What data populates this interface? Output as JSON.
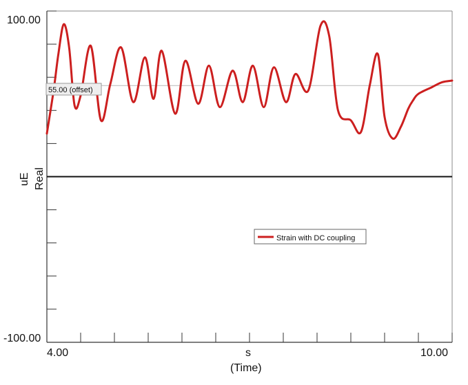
{
  "chart_data": {
    "type": "line",
    "title": "",
    "xlabel_unit": "s",
    "xlabel": "(Time)",
    "ylabel_unit": "uE",
    "ylabel": "Real",
    "xlim": [
      4.0,
      10.0
    ],
    "ylim": [
      -100.0,
      100.0
    ],
    "x_tick_labels": [
      "4.00",
      "10.00"
    ],
    "y_tick_labels": [
      "100.00",
      "-100.00"
    ],
    "offset_label": "55.00 (offset)",
    "offset_value": 55.0,
    "zero_line": 0,
    "legend": {
      "placement": "center-right",
      "entries": [
        "Strain with DC coupling"
      ]
    },
    "series": [
      {
        "name": "Strain with DC coupling",
        "color": "#cc1f1f",
        "x": [
          4.0,
          4.1,
          4.17,
          4.25,
          4.33,
          4.41,
          4.5,
          4.65,
          4.8,
          4.94,
          5.1,
          5.28,
          5.45,
          5.58,
          5.7,
          5.9,
          6.05,
          6.24,
          6.4,
          6.56,
          6.75,
          6.9,
          7.05,
          7.21,
          7.36,
          7.54,
          7.68,
          7.87,
          8.05,
          8.18,
          8.31,
          8.5,
          8.65,
          8.78,
          8.9,
          9.0,
          9.12,
          9.24,
          9.35,
          9.42,
          9.5,
          9.7,
          9.85,
          10.0
        ],
        "y": [
          26,
          52,
          74,
          92,
          78,
          43,
          49,
          79,
          34,
          56,
          78,
          45,
          72,
          47,
          76,
          38,
          70,
          44,
          67,
          42,
          64,
          45,
          67,
          42,
          66,
          45,
          62,
          52,
          91,
          85,
          40,
          34,
          27,
          55,
          74,
          36,
          23,
          30,
          41,
          46,
          50,
          54,
          57,
          58
        ]
      }
    ]
  },
  "colors": {
    "series": "#cc1f1f",
    "axis": "#333333",
    "zero_line": "#111111",
    "offset_line": "#b8b8b8"
  }
}
